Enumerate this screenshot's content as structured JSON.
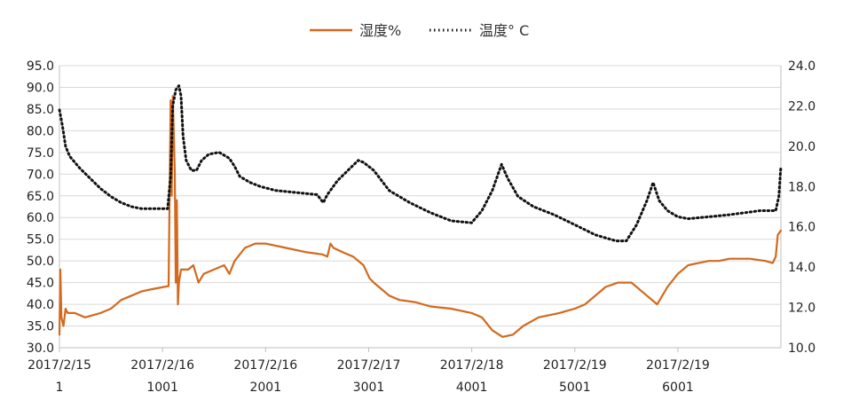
{
  "chart_data": {
    "type": "line",
    "title": "",
    "xlabel": "",
    "ylabel": "",
    "y2label": "",
    "grid": true,
    "legend": "top-center",
    "x_range": [
      1,
      7000
    ],
    "ylim": [
      30,
      95
    ],
    "y2lim": [
      10,
      24
    ],
    "y_ticks": [
      "95.0",
      "90.0",
      "85.0",
      "80.0",
      "75.0",
      "70.0",
      "65.0",
      "60.0",
      "55.0",
      "50.0",
      "45.0",
      "40.0",
      "35.0",
      "30.0"
    ],
    "y2_ticks": [
      "24.0",
      "22.0",
      "20.0",
      "18.0",
      "16.0",
      "14.0",
      "12.0",
      "10.0"
    ],
    "x_ticks": [
      {
        "x": 1,
        "date": "2017/2/15",
        "index": "1"
      },
      {
        "x": 1001,
        "date": "2017/2/16",
        "index": "1001"
      },
      {
        "x": 2001,
        "date": "2017/2/16",
        "index": "2001"
      },
      {
        "x": 3001,
        "date": "2017/2/17",
        "index": "3001"
      },
      {
        "x": 4001,
        "date": "2017/2/18",
        "index": "4001"
      },
      {
        "x": 5001,
        "date": "2017/2/19",
        "index": "5001"
      },
      {
        "x": 6001,
        "date": "2017/2/19",
        "index": "6001"
      }
    ],
    "series": [
      {
        "name": "湿度%",
        "axis": "left",
        "color": "#D2691E",
        "style": "solid",
        "points": [
          [
            1,
            33
          ],
          [
            10,
            48
          ],
          [
            20,
            37
          ],
          [
            40,
            35
          ],
          [
            60,
            39
          ],
          [
            80,
            38
          ],
          [
            150,
            38
          ],
          [
            250,
            37
          ],
          [
            400,
            38
          ],
          [
            500,
            39
          ],
          [
            600,
            41
          ],
          [
            700,
            42
          ],
          [
            800,
            43
          ],
          [
            900,
            43.5
          ],
          [
            1060,
            44.2
          ],
          [
            1080,
            87
          ],
          [
            1090,
            65
          ],
          [
            1100,
            88
          ],
          [
            1110,
            80
          ],
          [
            1120,
            70
          ],
          [
            1130,
            45
          ],
          [
            1140,
            64
          ],
          [
            1150,
            40
          ],
          [
            1160,
            45
          ],
          [
            1180,
            48
          ],
          [
            1250,
            48
          ],
          [
            1300,
            49
          ],
          [
            1350,
            45
          ],
          [
            1400,
            47
          ],
          [
            1500,
            48
          ],
          [
            1600,
            49
          ],
          [
            1650,
            47
          ],
          [
            1700,
            50
          ],
          [
            1800,
            53
          ],
          [
            1900,
            54
          ],
          [
            2000,
            54
          ],
          [
            2200,
            53
          ],
          [
            2400,
            52
          ],
          [
            2550,
            51.5
          ],
          [
            2600,
            51
          ],
          [
            2630,
            54
          ],
          [
            2660,
            53
          ],
          [
            2750,
            52
          ],
          [
            2850,
            51
          ],
          [
            2950,
            49
          ],
          [
            2990,
            47
          ],
          [
            3010,
            46
          ],
          [
            3050,
            45
          ],
          [
            3100,
            44
          ],
          [
            3200,
            42
          ],
          [
            3300,
            41
          ],
          [
            3450,
            40.5
          ],
          [
            3600,
            39.5
          ],
          [
            3800,
            39
          ],
          [
            4000,
            38
          ],
          [
            4100,
            37
          ],
          [
            4200,
            34
          ],
          [
            4300,
            32.5
          ],
          [
            4400,
            33
          ],
          [
            4500,
            35
          ],
          [
            4650,
            37
          ],
          [
            4850,
            38
          ],
          [
            5000,
            39
          ],
          [
            5100,
            40
          ],
          [
            5200,
            42
          ],
          [
            5300,
            44
          ],
          [
            5420,
            45
          ],
          [
            5550,
            45
          ],
          [
            5700,
            42
          ],
          [
            5800,
            40
          ],
          [
            5900,
            44
          ],
          [
            6000,
            47
          ],
          [
            6100,
            49
          ],
          [
            6200,
            49.5
          ],
          [
            6300,
            50
          ],
          [
            6400,
            50
          ],
          [
            6500,
            50.5
          ],
          [
            6600,
            50.5
          ],
          [
            6700,
            50.5
          ],
          [
            6850,
            50
          ],
          [
            6920,
            49.5
          ],
          [
            6950,
            51
          ],
          [
            6970,
            56
          ],
          [
            7000,
            57
          ]
        ]
      },
      {
        "name": "温度° C",
        "axis": "right",
        "color": "#111111",
        "style": "dotted",
        "points": [
          [
            1,
            21.8
          ],
          [
            30,
            21
          ],
          [
            60,
            20
          ],
          [
            100,
            19.5
          ],
          [
            150,
            19.2
          ],
          [
            200,
            18.9
          ],
          [
            300,
            18.4
          ],
          [
            400,
            17.9
          ],
          [
            500,
            17.5
          ],
          [
            600,
            17.2
          ],
          [
            700,
            17.0
          ],
          [
            800,
            16.9
          ],
          [
            900,
            16.9
          ],
          [
            1050,
            16.9
          ],
          [
            1080,
            18.5
          ],
          [
            1100,
            22
          ],
          [
            1130,
            22.8
          ],
          [
            1160,
            23
          ],
          [
            1180,
            22.5
          ],
          [
            1200,
            20.5
          ],
          [
            1230,
            19.3
          ],
          [
            1280,
            18.8
          ],
          [
            1330,
            18.8
          ],
          [
            1380,
            19.3
          ],
          [
            1450,
            19.6
          ],
          [
            1550,
            19.7
          ],
          [
            1650,
            19.4
          ],
          [
            1700,
            19.0
          ],
          [
            1750,
            18.5
          ],
          [
            1850,
            18.2
          ],
          [
            1950,
            18.0
          ],
          [
            2100,
            17.8
          ],
          [
            2300,
            17.7
          ],
          [
            2500,
            17.6
          ],
          [
            2560,
            17.2
          ],
          [
            2600,
            17.6
          ],
          [
            2700,
            18.3
          ],
          [
            2800,
            18.8
          ],
          [
            2900,
            19.3
          ],
          [
            2950,
            19.2
          ],
          [
            3050,
            18.8
          ],
          [
            3200,
            17.8
          ],
          [
            3400,
            17.2
          ],
          [
            3600,
            16.7
          ],
          [
            3800,
            16.3
          ],
          [
            4000,
            16.2
          ],
          [
            4100,
            16.8
          ],
          [
            4200,
            17.8
          ],
          [
            4290,
            19.1
          ],
          [
            4350,
            18.4
          ],
          [
            4450,
            17.5
          ],
          [
            4600,
            17.0
          ],
          [
            4800,
            16.6
          ],
          [
            5000,
            16.1
          ],
          [
            5200,
            15.6
          ],
          [
            5400,
            15.3
          ],
          [
            5500,
            15.3
          ],
          [
            5600,
            16.1
          ],
          [
            5700,
            17.3
          ],
          [
            5760,
            18.2
          ],
          [
            5820,
            17.3
          ],
          [
            5900,
            16.8
          ],
          [
            6000,
            16.5
          ],
          [
            6100,
            16.4
          ],
          [
            6300,
            16.5
          ],
          [
            6500,
            16.6
          ],
          [
            6800,
            16.8
          ],
          [
            6950,
            16.8
          ],
          [
            6980,
            17.5
          ],
          [
            7000,
            19
          ]
        ]
      }
    ]
  }
}
